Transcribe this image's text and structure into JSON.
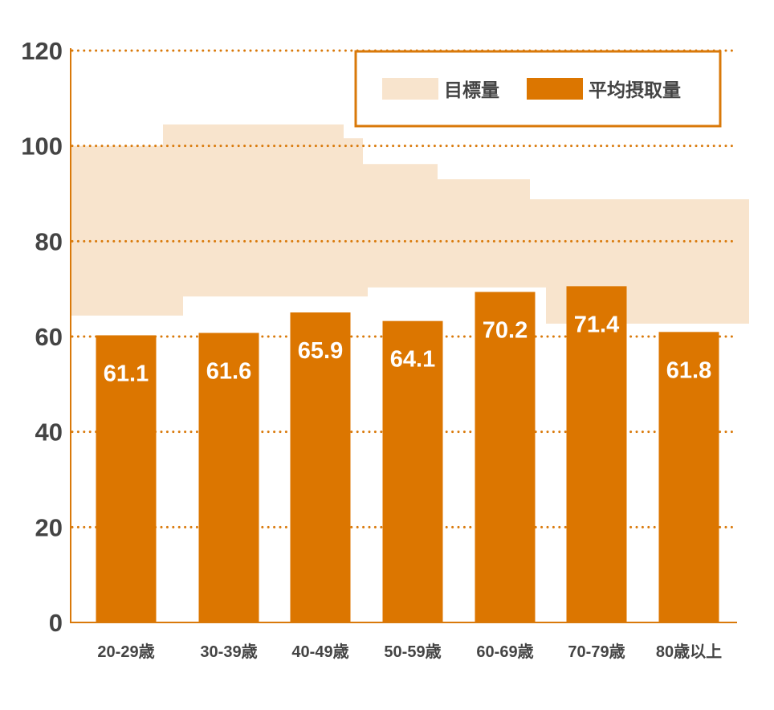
{
  "chart_data": {
    "type": "bar",
    "title": "",
    "xlabel": "",
    "ylabel": "",
    "ylim": [
      0,
      120
    ],
    "yticks": [
      0,
      20,
      40,
      60,
      80,
      100,
      120
    ],
    "grid": true,
    "legend_placement": "top-right",
    "categories": [
      "20-29歳",
      "30-39歳",
      "40-49歳",
      "50-59歳",
      "60-69歳",
      "70-79歳",
      "80歳以上"
    ],
    "series": [
      {
        "name": "平均摂取量",
        "type": "bar",
        "values": [
          61.1,
          61.6,
          65.9,
          64.1,
          70.2,
          71.4,
          61.8
        ],
        "color": "#dc7600"
      }
    ],
    "target_band": {
      "name": "目標量",
      "color": "#f8e4cd",
      "upper_steps": [
        100,
        104.5,
        101.6,
        96.2,
        93.0,
        88.8
      ],
      "lower_steps": [
        64.4,
        68.4,
        70.3,
        62.7
      ]
    },
    "legend": [
      {
        "label": "目標量",
        "color": "#f8e4cd"
      },
      {
        "label": "平均摂取量",
        "color": "#dc7600"
      }
    ],
    "colors": {
      "grid": "#d9790a",
      "axis": "#d9790a",
      "text": "#444444",
      "legend_border": "#d9790a"
    }
  }
}
